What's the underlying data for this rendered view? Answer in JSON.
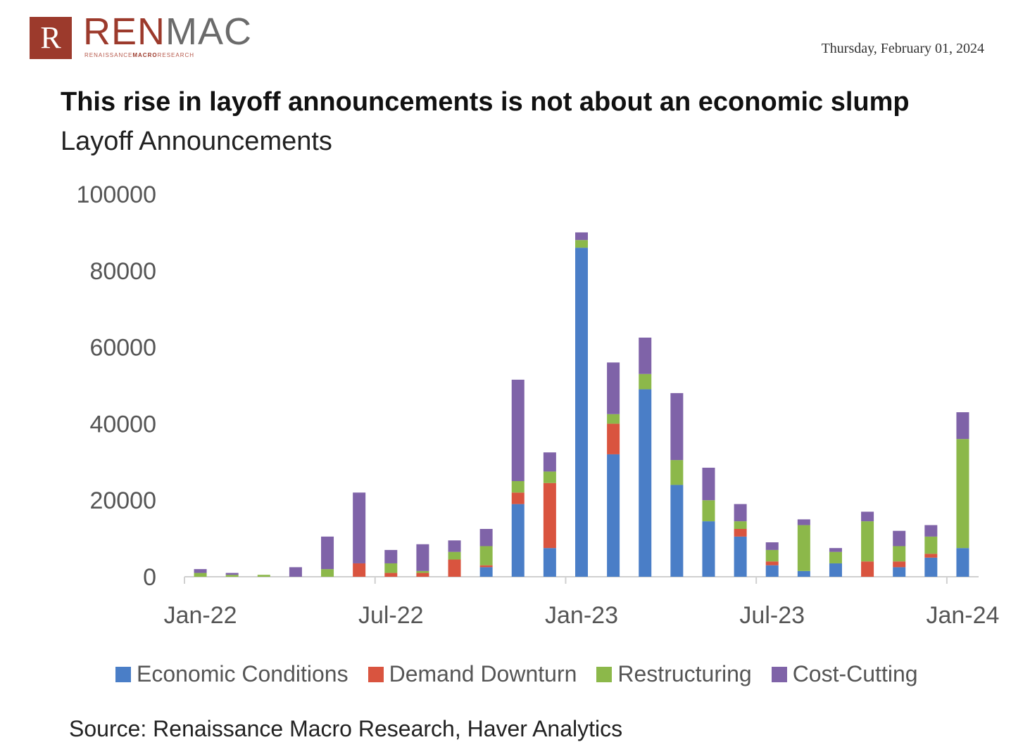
{
  "header": {
    "logo_mark": "R",
    "brand_first": "REN",
    "brand_second": "MAC",
    "tagline_first": "RENAISSANCE",
    "tagline_bold": "MACRO",
    "tagline_last": "RESEARCH",
    "date": "Thursday, February 01, 2024"
  },
  "title": "This rise in layoff announcements is not about an economic slump",
  "subtitle": "Layoff Announcements",
  "source": "Source: Renaissance Macro Research, Haver Analytics",
  "colors": {
    "economic": "#4a7ec7",
    "demand": "#d9543f",
    "restructuring": "#8cb84a",
    "cost": "#7f63a8",
    "brand": "#9c3a2c"
  },
  "chart_data": {
    "type": "bar",
    "stacked": true,
    "title": "This rise in layoff announcements is not about an economic slump",
    "subtitle": "Layoff Announcements",
    "ylim": [
      0,
      100000
    ],
    "yticks": [
      "100000",
      "80000",
      "60000",
      "40000",
      "20000",
      "0"
    ],
    "ytick_values": [
      100000,
      80000,
      60000,
      40000,
      20000,
      0
    ],
    "xtick_labels": [
      "Jan-22",
      "Jul-22",
      "Jan-23",
      "Jul-23",
      "Jan-24"
    ],
    "xtick_positions": [
      0,
      6,
      12,
      18,
      24
    ],
    "categories": [
      "Jan-22",
      "Feb-22",
      "Mar-22",
      "Apr-22",
      "May-22",
      "Jun-22",
      "Jul-22",
      "Aug-22",
      "Sep-22",
      "Oct-22",
      "Nov-22",
      "Dec-22",
      "Jan-23",
      "Feb-23",
      "Mar-23",
      "Apr-23",
      "May-23",
      "Jun-23",
      "Jul-23",
      "Aug-23",
      "Sep-23",
      "Oct-23",
      "Nov-23",
      "Dec-23",
      "Jan-24"
    ],
    "legend_position": "bottom",
    "series": [
      {
        "name": "Economic Conditions",
        "color": "#4a7ec7",
        "values": [
          0,
          0,
          0,
          0,
          0,
          0,
          0,
          0,
          0,
          2500,
          19000,
          7500,
          86000,
          32000,
          49000,
          24000,
          14500,
          10500,
          3000,
          1500,
          3500,
          0,
          2500,
          5000,
          7500
        ]
      },
      {
        "name": "Demand Downturn",
        "color": "#d9543f",
        "values": [
          0,
          0,
          0,
          0,
          0,
          3500,
          1000,
          1000,
          4500,
          500,
          3000,
          17000,
          0,
          8000,
          0,
          0,
          0,
          2000,
          1000,
          0,
          0,
          4000,
          1500,
          1000,
          0
        ]
      },
      {
        "name": "Restructuring",
        "color": "#8cb84a",
        "values": [
          1000,
          500,
          500,
          0,
          2000,
          0,
          2500,
          500,
          2000,
          5000,
          3000,
          3000,
          2000,
          2500,
          4000,
          6500,
          5500,
          2000,
          3000,
          12000,
          3000,
          10500,
          4000,
          4500,
          28500
        ]
      },
      {
        "name": "Cost-Cutting",
        "color": "#7f63a8",
        "values": [
          1000,
          500,
          0,
          2500,
          8500,
          18500,
          3500,
          7000,
          3000,
          4500,
          26500,
          5000,
          2000,
          13500,
          9500,
          17500,
          8500,
          4500,
          2000,
          1500,
          1000,
          2500,
          4000,
          3000,
          7000
        ]
      }
    ]
  }
}
